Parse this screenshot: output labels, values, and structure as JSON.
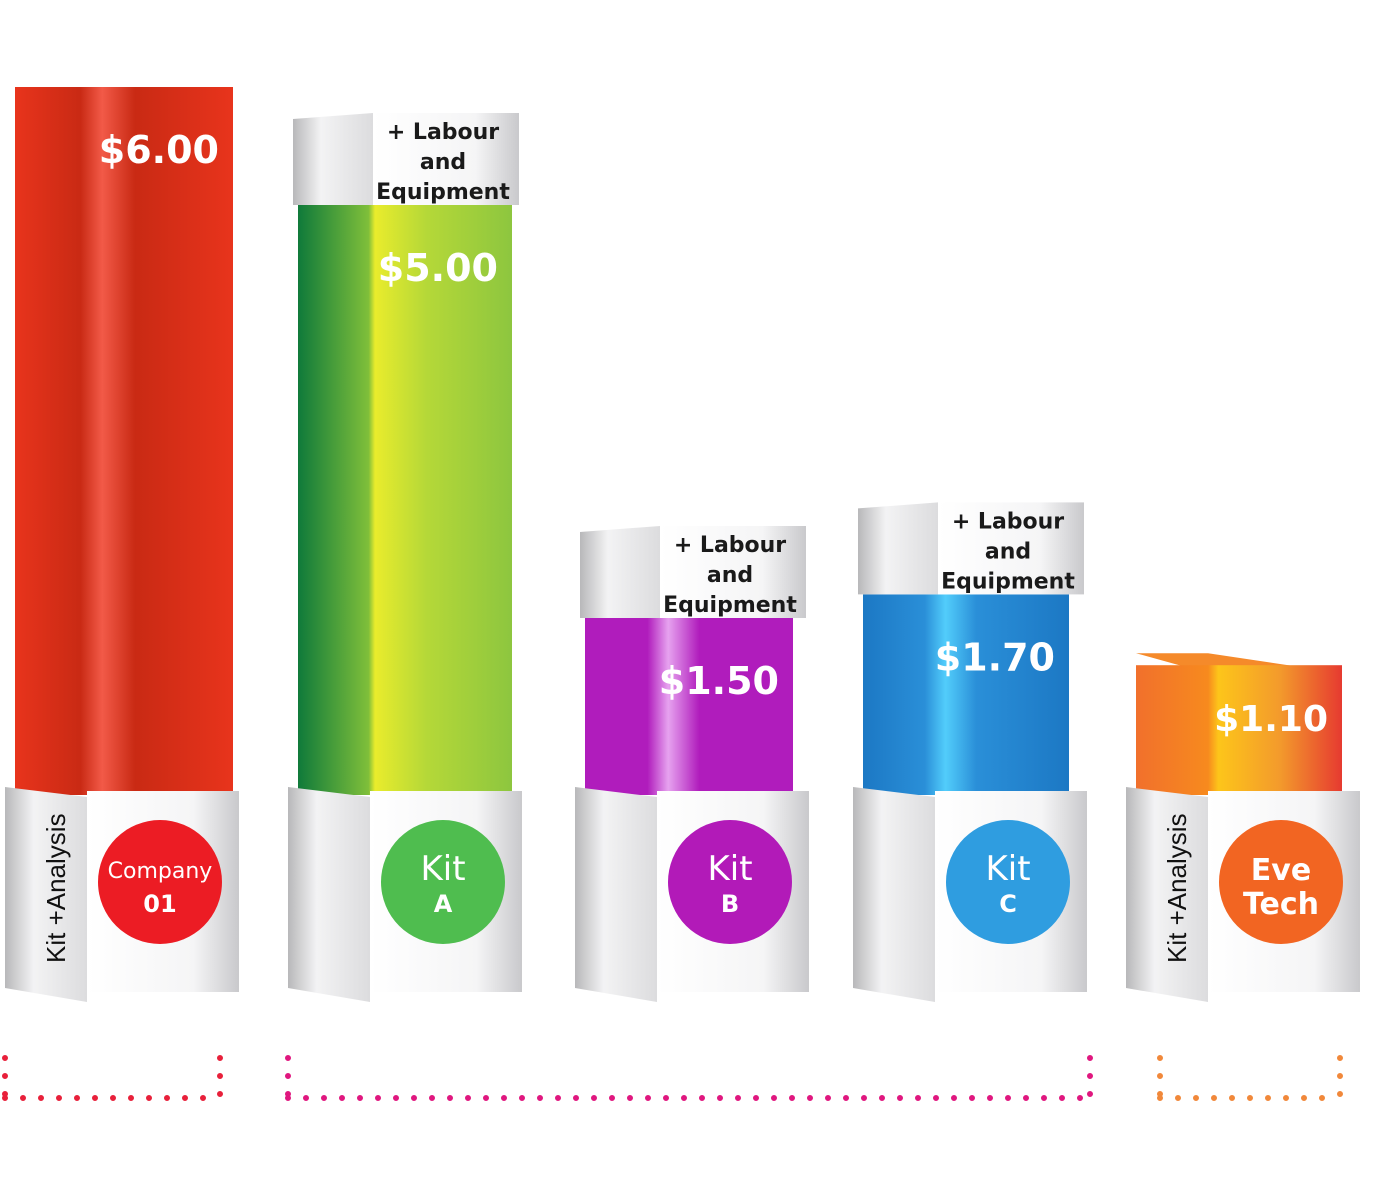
{
  "chart_data": {
    "type": "bar",
    "title": "",
    "xlabel": "",
    "ylabel": "",
    "ylim": [
      0,
      6.3
    ],
    "categories": [
      "Company 01",
      "Kit A",
      "Kit B",
      "Kit C",
      "Eve Tech"
    ],
    "values": [
      6.0,
      5.0,
      1.5,
      1.7,
      1.1
    ],
    "bars": [
      {
        "value": 6.0,
        "value_label": "$6.00",
        "circle_line1": "Company",
        "circle_line2": "01",
        "side_label": "Kit +Analysis",
        "addon_lines": [],
        "colors": {
          "base": "#e8341c",
          "light": "#f25a48",
          "dark": "#c92a14",
          "circle": "#ec1c24"
        }
      },
      {
        "value": 5.0,
        "value_label": "$5.00",
        "circle_line1": "Kit",
        "circle_line2": "A",
        "side_label": "",
        "addon_lines": [
          "+ Labour",
          "and",
          "Equipment"
        ],
        "colors": {
          "base": "#8dc63f",
          "light": "#e9ec2c",
          "dark": "#0f7a3a",
          "circle": "#4fbd4f"
        }
      },
      {
        "value": 1.5,
        "value_label": "$1.50",
        "circle_line1": "Kit",
        "circle_line2": "B",
        "side_label": "",
        "addon_lines": [
          "+ Labour",
          "and",
          "Equipment"
        ],
        "colors": {
          "base": "#b01cbc",
          "light": "#e6a2ef",
          "dark": "#b01cbc",
          "circle": "#b21ab8"
        }
      },
      {
        "value": 1.7,
        "value_label": "$1.70",
        "circle_line1": "Kit",
        "circle_line2": "C",
        "side_label": "",
        "addon_lines": [
          "+ Labour",
          "and",
          "Equipment"
        ],
        "colors": {
          "base": "#1c78c4",
          "light": "#52cdfb",
          "dark": "#2a8fd8",
          "circle": "#2f9de0"
        }
      },
      {
        "value": 1.1,
        "value_label": "$1.10",
        "circle_line1": "Eve",
        "circle_line2": "Tech",
        "side_label": "Kit +Analysis",
        "addon_lines": [],
        "colors": {
          "base": "#f1702c",
          "light": "#fdc51a",
          "dark": "#e63a30",
          "circle": "#f26522"
        }
      }
    ],
    "bracket_colors": [
      "#e8203a",
      "#e0177f",
      "#f1883a"
    ]
  }
}
